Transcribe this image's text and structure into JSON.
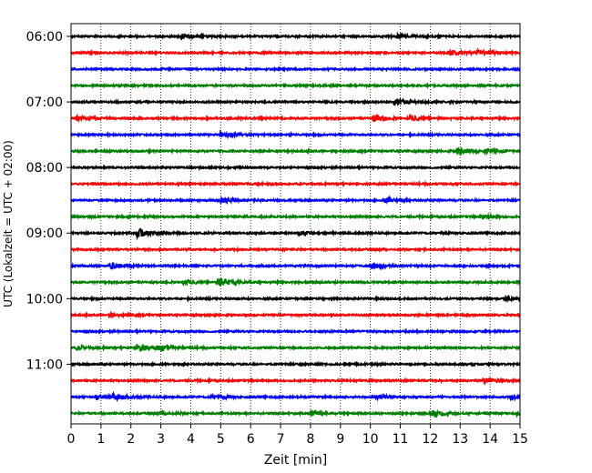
{
  "chart_data": {
    "type": "line",
    "subtype": "helicorder-seismogram",
    "title": "",
    "xlabel": "Zeit  [min]",
    "ylabel": "UTC (Lokalzeit = UTC + 02:00)",
    "xlim": [
      0,
      15
    ],
    "x_ticks": [
      0,
      1,
      2,
      3,
      4,
      5,
      6,
      7,
      8,
      9,
      10,
      11,
      12,
      13,
      14,
      15
    ],
    "y_tick_labels": [
      "06:00",
      "07:00",
      "08:00",
      "09:00",
      "10:00",
      "11:00"
    ],
    "trace_minutes": 15,
    "grid": "vertical dotted at each minute",
    "colors": [
      "#000000",
      "#ff0000",
      "#0000ff",
      "#008000"
    ],
    "series": [
      {
        "start": "06:00",
        "color": "#000000",
        "bursts": [
          [
            3.7,
            0.8
          ],
          [
            10.9,
            0.6
          ]
        ]
      },
      {
        "start": "06:15",
        "color": "#ff0000",
        "bursts": [
          [
            12.6,
            0.9
          ],
          [
            13.6,
            0.7
          ]
        ]
      },
      {
        "start": "06:30",
        "color": "#0000ff",
        "bursts": []
      },
      {
        "start": "06:45",
        "color": "#008000",
        "bursts": []
      },
      {
        "start": "07:00",
        "color": "#000000",
        "bursts": [
          [
            10.8,
            1.3
          ]
        ]
      },
      {
        "start": "07:15",
        "color": "#ff0000",
        "bursts": [
          [
            0.2,
            0.7
          ],
          [
            10.1,
            1.0
          ],
          [
            11.3,
            0.7
          ]
        ]
      },
      {
        "start": "07:30",
        "color": "#0000ff",
        "bursts": [
          [
            5.0,
            0.9
          ]
        ]
      },
      {
        "start": "07:45",
        "color": "#008000",
        "bursts": [
          [
            12.9,
            1.1
          ],
          [
            13.8,
            0.6
          ]
        ]
      },
      {
        "start": "08:00",
        "color": "#000000",
        "bursts": []
      },
      {
        "start": "08:15",
        "color": "#ff0000",
        "bursts": []
      },
      {
        "start": "08:30",
        "color": "#0000ff",
        "bursts": [
          [
            5.0,
            1.0
          ],
          [
            10.5,
            0.8
          ]
        ]
      },
      {
        "start": "08:45",
        "color": "#008000",
        "bursts": [
          [
            13.7,
            0.6
          ]
        ]
      },
      {
        "start": "09:00",
        "color": "#000000",
        "bursts": [
          [
            2.2,
            1.6
          ],
          [
            7.6,
            0.5
          ]
        ]
      },
      {
        "start": "09:15",
        "color": "#ff0000",
        "bursts": []
      },
      {
        "start": "09:30",
        "color": "#0000ff",
        "bursts": [
          [
            1.3,
            1.1
          ],
          [
            10.0,
            1.0
          ]
        ]
      },
      {
        "start": "09:45",
        "color": "#008000",
        "bursts": [
          [
            3.7,
            0.7
          ],
          [
            4.9,
            1.6
          ]
        ]
      },
      {
        "start": "10:00",
        "color": "#000000",
        "bursts": [
          [
            14.5,
            0.5
          ]
        ]
      },
      {
        "start": "10:15",
        "color": "#ff0000",
        "bursts": [
          [
            1.3,
            0.6
          ]
        ]
      },
      {
        "start": "10:30",
        "color": "#0000ff",
        "bursts": []
      },
      {
        "start": "10:45",
        "color": "#008000",
        "bursts": [
          [
            0.2,
            0.7
          ],
          [
            2.2,
            1.4
          ],
          [
            2.9,
            0.8
          ]
        ]
      },
      {
        "start": "11:00",
        "color": "#000000",
        "bursts": []
      },
      {
        "start": "11:15",
        "color": "#ff0000",
        "bursts": [
          [
            13.8,
            0.7
          ]
        ]
      },
      {
        "start": "11:30",
        "color": "#0000ff",
        "bursts": [
          [
            0.8,
            1.1
          ],
          [
            1.4,
            1.0
          ],
          [
            4.7,
            0.6
          ],
          [
            10.2,
            0.6
          ],
          [
            14.7,
            0.6
          ]
        ]
      },
      {
        "start": "11:45",
        "color": "#008000",
        "bursts": [
          [
            3.0,
            0.6
          ],
          [
            8.0,
            0.6
          ],
          [
            12.0,
            1.2
          ],
          [
            14.9,
            0.6
          ]
        ]
      }
    ]
  }
}
